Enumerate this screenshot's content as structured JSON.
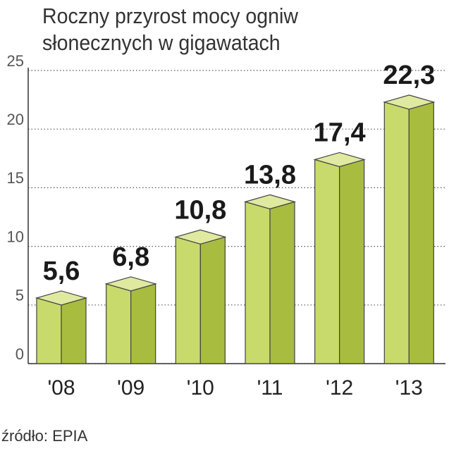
{
  "chart_data": {
    "type": "bar3d",
    "title": "Roczny przyrost mocy ogniw słonecznych w gigawatach",
    "categories": [
      "'08",
      "'09",
      "'10",
      "'11",
      "'12",
      "'13"
    ],
    "values": [
      5.6,
      6.8,
      10.8,
      13.8,
      17.4,
      22.3
    ],
    "value_labels": [
      "5,6",
      "6,8",
      "10,8",
      "13,8",
      "17,4",
      "22,3"
    ],
    "ylim": [
      0,
      25
    ],
    "yticks": [
      0,
      5,
      10,
      15,
      20,
      25
    ],
    "grid": true,
    "colors": {
      "front": "#c8da6c",
      "side": "#a8bc40",
      "top": "#e0e9a0"
    },
    "source": "źródło: EPIA"
  }
}
